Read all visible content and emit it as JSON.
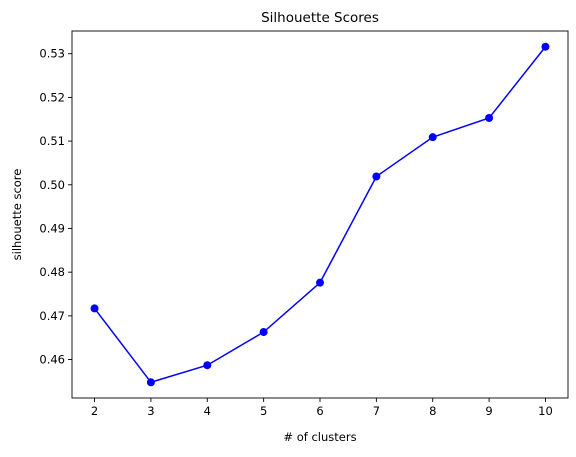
{
  "chart_data": {
    "type": "line",
    "title": "Silhouette Scores",
    "xlabel": "# of clusters",
    "ylabel": "silhouette score",
    "x": [
      2,
      3,
      4,
      5,
      6,
      7,
      8,
      9,
      10
    ],
    "series": [
      {
        "values": [
          0.4717,
          0.4548,
          0.4587,
          0.4663,
          0.4776,
          0.5019,
          0.5109,
          0.5153,
          0.5316
        ],
        "color": "#0000ff",
        "marker": "circle"
      }
    ],
    "xlim": [
      1.6,
      10.4
    ],
    "ylim": [
      0.4512,
      0.5352
    ],
    "xticks": [
      2,
      3,
      4,
      5,
      6,
      7,
      8,
      9,
      10
    ],
    "xtick_labels": [
      "2",
      "3",
      "4",
      "5",
      "6",
      "7",
      "8",
      "9",
      "10"
    ],
    "yticks": [
      0.46,
      0.47,
      0.48,
      0.49,
      0.5,
      0.51,
      0.52,
      0.53
    ],
    "ytick_labels": [
      "0.46",
      "0.47",
      "0.48",
      "0.49",
      "0.50",
      "0.51",
      "0.52",
      "0.53"
    ],
    "grid": false,
    "legend": "none"
  }
}
